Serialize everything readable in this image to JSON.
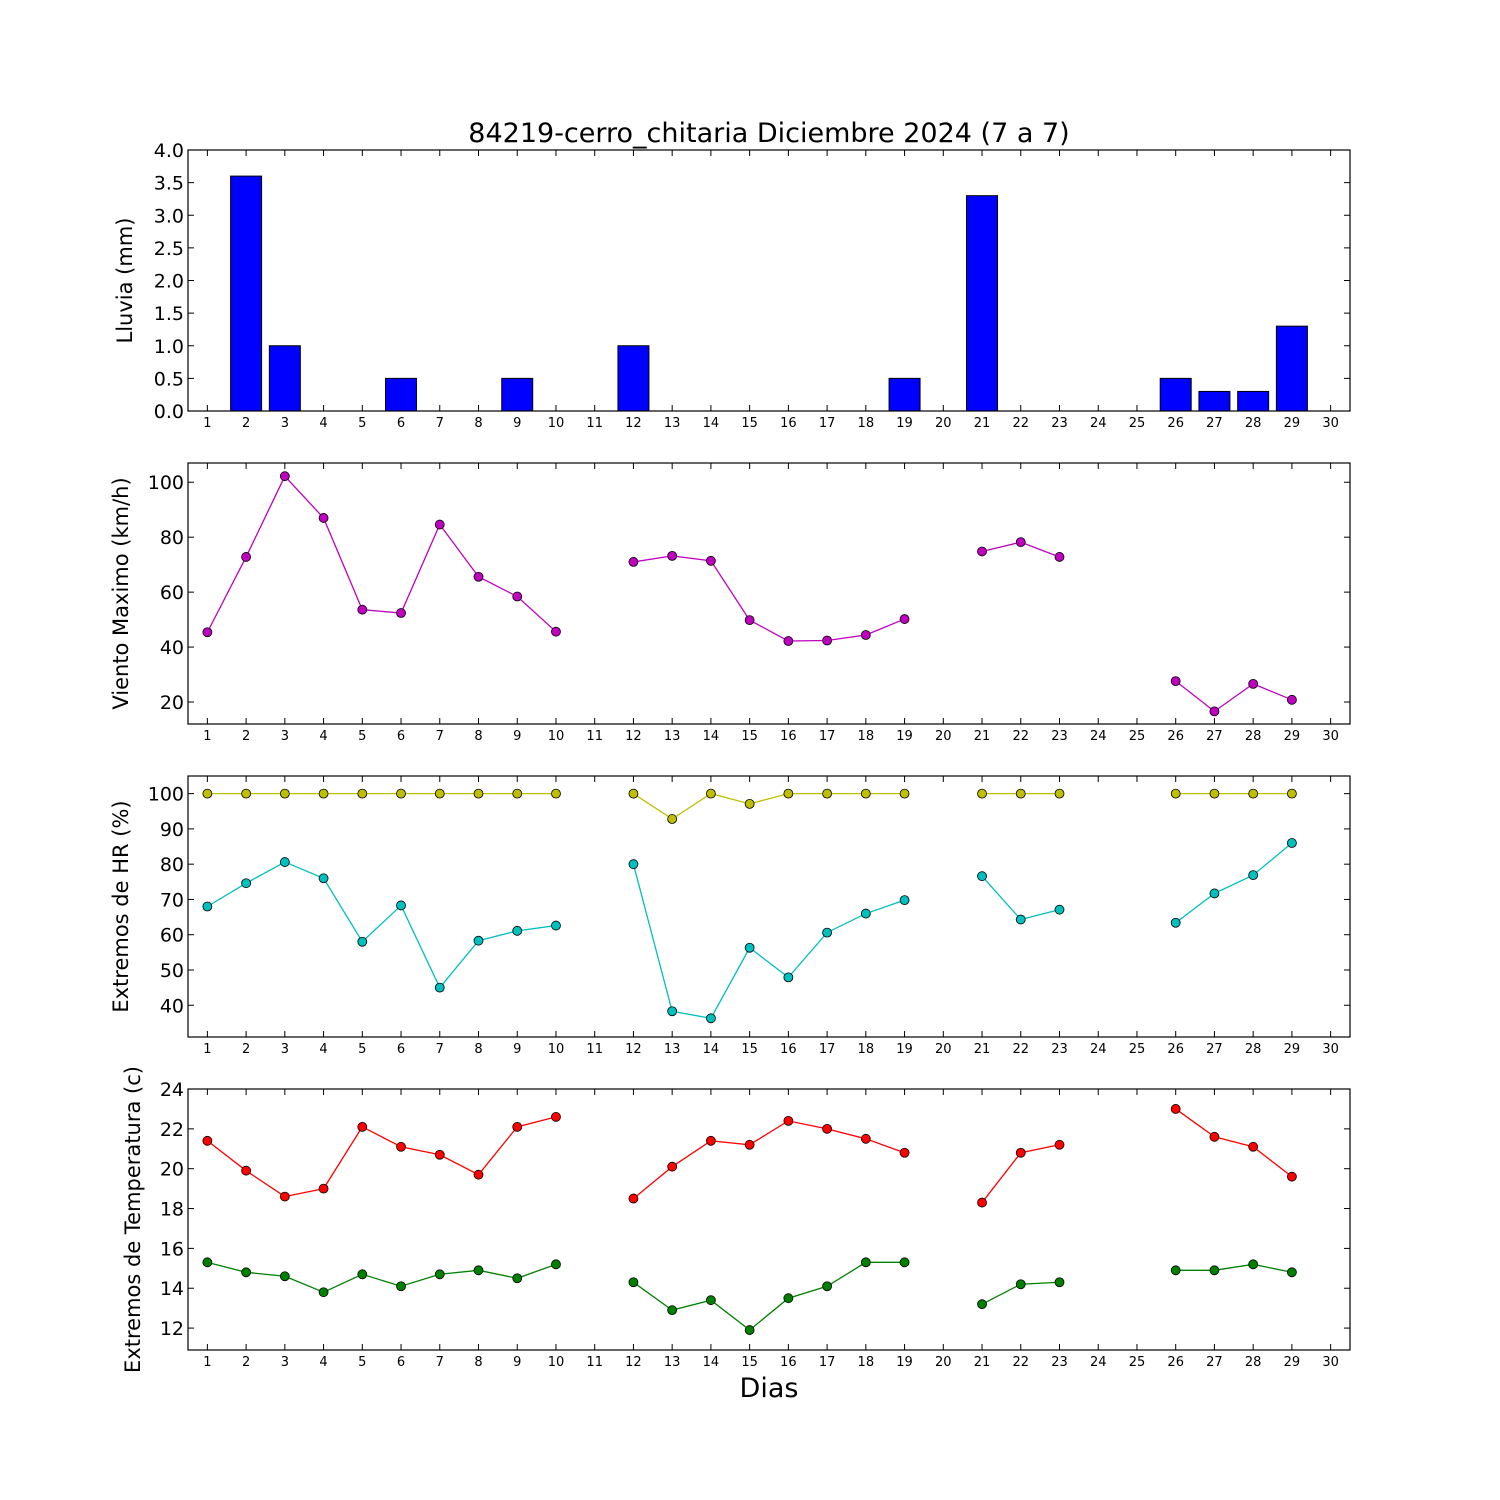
{
  "title": "84219-cerro_chitaria Diciembre 2024  (7 a 7)",
  "xlabel": "Dias",
  "days": [
    1,
    2,
    3,
    4,
    5,
    6,
    7,
    8,
    9,
    10,
    11,
    12,
    13,
    14,
    15,
    16,
    17,
    18,
    19,
    20,
    21,
    22,
    23,
    24,
    25,
    26,
    27,
    28,
    29,
    30
  ],
  "chart_data": [
    {
      "type": "bar",
      "ylabel": "Lluvia (mm)",
      "ylim": [
        0,
        4.0
      ],
      "yticks": [
        0.0,
        0.5,
        1.0,
        1.5,
        2.0,
        2.5,
        3.0,
        3.5,
        4.0
      ],
      "xlim": [
        0.5,
        30.5
      ],
      "color": "#0000ff",
      "x": [
        1,
        2,
        3,
        4,
        5,
        6,
        7,
        8,
        9,
        10,
        11,
        12,
        13,
        14,
        15,
        16,
        17,
        18,
        19,
        20,
        21,
        22,
        23,
        24,
        25,
        26,
        27,
        28,
        29,
        30
      ],
      "values": [
        0,
        3.6,
        1.0,
        0,
        0,
        0.5,
        0,
        0,
        0.5,
        0,
        0,
        1.0,
        0,
        0,
        0,
        0,
        0,
        0,
        0.5,
        0,
        3.3,
        0,
        0,
        0,
        0,
        0.5,
        0.3,
        0.3,
        1.3,
        0
      ]
    },
    {
      "type": "line",
      "ylabel": "Viento Maximo (km/h)",
      "ylim": [
        12,
        107
      ],
      "yticks": [
        20,
        40,
        60,
        80,
        100
      ],
      "xlim": [
        0.5,
        30.5
      ],
      "series": [
        {
          "color": "#bf00bf",
          "x": [
            1,
            2,
            3,
            4,
            5,
            6,
            7,
            8,
            9,
            10,
            11,
            12,
            13,
            14,
            15,
            16,
            17,
            18,
            19,
            20,
            21,
            22,
            23,
            24,
            25,
            26,
            27,
            28,
            29,
            30
          ],
          "values": [
            45.4,
            72.8,
            102.2,
            87.0,
            53.6,
            52.4,
            84.6,
            65.6,
            58.4,
            45.6,
            null,
            71.0,
            73.2,
            71.4,
            49.8,
            42.2,
            42.4,
            44.4,
            50.2,
            null,
            74.8,
            78.2,
            72.8,
            null,
            null,
            27.6,
            16.6,
            26.6,
            20.8,
            null
          ]
        }
      ]
    },
    {
      "type": "line",
      "ylabel": "Extremos de HR (%)",
      "ylim": [
        31,
        105
      ],
      "yticks": [
        40,
        50,
        60,
        70,
        80,
        90,
        100
      ],
      "xlim": [
        0.5,
        30.5
      ],
      "series": [
        {
          "color": "#bfbf00",
          "x": [
            1,
            2,
            3,
            4,
            5,
            6,
            7,
            8,
            9,
            10,
            11,
            12,
            13,
            14,
            15,
            16,
            17,
            18,
            19,
            20,
            21,
            22,
            23,
            24,
            25,
            26,
            27,
            28,
            29,
            30
          ],
          "values": [
            100,
            100,
            100,
            100,
            100,
            100,
            100,
            100,
            100,
            100,
            null,
            100,
            92.8,
            100,
            97.1,
            100,
            100,
            100,
            100,
            null,
            100,
            100,
            100,
            null,
            null,
            100,
            100,
            100,
            100,
            null
          ]
        },
        {
          "color": "#00bfbf",
          "x": [
            1,
            2,
            3,
            4,
            5,
            6,
            7,
            8,
            9,
            10,
            11,
            12,
            13,
            14,
            15,
            16,
            17,
            18,
            19,
            20,
            21,
            22,
            23,
            24,
            25,
            26,
            27,
            28,
            29,
            30
          ],
          "values": [
            68.0,
            74.6,
            80.6,
            76.0,
            58.0,
            68.3,
            45.0,
            58.3,
            61.1,
            62.6,
            null,
            80.0,
            38.3,
            36.3,
            56.3,
            47.9,
            60.6,
            66.0,
            69.8,
            null,
            76.6,
            64.3,
            67.1,
            null,
            null,
            63.4,
            71.7,
            76.9,
            86.0,
            null
          ]
        }
      ]
    },
    {
      "type": "line",
      "ylabel": "Extremos de Temperatura (c)",
      "ylim": [
        10.9,
        24
      ],
      "yticks": [
        12,
        14,
        16,
        18,
        20,
        22,
        24
      ],
      "xlim": [
        0.5,
        30.5
      ],
      "series": [
        {
          "color": "#ff0000",
          "x": [
            1,
            2,
            3,
            4,
            5,
            6,
            7,
            8,
            9,
            10,
            11,
            12,
            13,
            14,
            15,
            16,
            17,
            18,
            19,
            20,
            21,
            22,
            23,
            24,
            25,
            26,
            27,
            28,
            29,
            30
          ],
          "values": [
            21.4,
            19.9,
            18.6,
            19.0,
            22.1,
            21.1,
            20.7,
            19.7,
            22.1,
            22.6,
            null,
            18.5,
            20.1,
            21.4,
            21.2,
            22.4,
            22.0,
            21.5,
            20.8,
            null,
            18.3,
            20.8,
            21.2,
            null,
            null,
            23.0,
            21.6,
            21.1,
            19.6,
            null
          ]
        },
        {
          "color": "#008000",
          "x": [
            1,
            2,
            3,
            4,
            5,
            6,
            7,
            8,
            9,
            10,
            11,
            12,
            13,
            14,
            15,
            16,
            17,
            18,
            19,
            20,
            21,
            22,
            23,
            24,
            25,
            26,
            27,
            28,
            29,
            30
          ],
          "values": [
            15.3,
            14.8,
            14.6,
            13.8,
            14.7,
            14.1,
            14.7,
            14.9,
            14.5,
            15.2,
            null,
            14.3,
            12.9,
            13.4,
            11.9,
            13.5,
            14.1,
            15.3,
            15.3,
            null,
            13.2,
            14.2,
            14.3,
            null,
            null,
            14.9,
            14.9,
            15.2,
            14.8,
            null
          ]
        }
      ]
    }
  ]
}
